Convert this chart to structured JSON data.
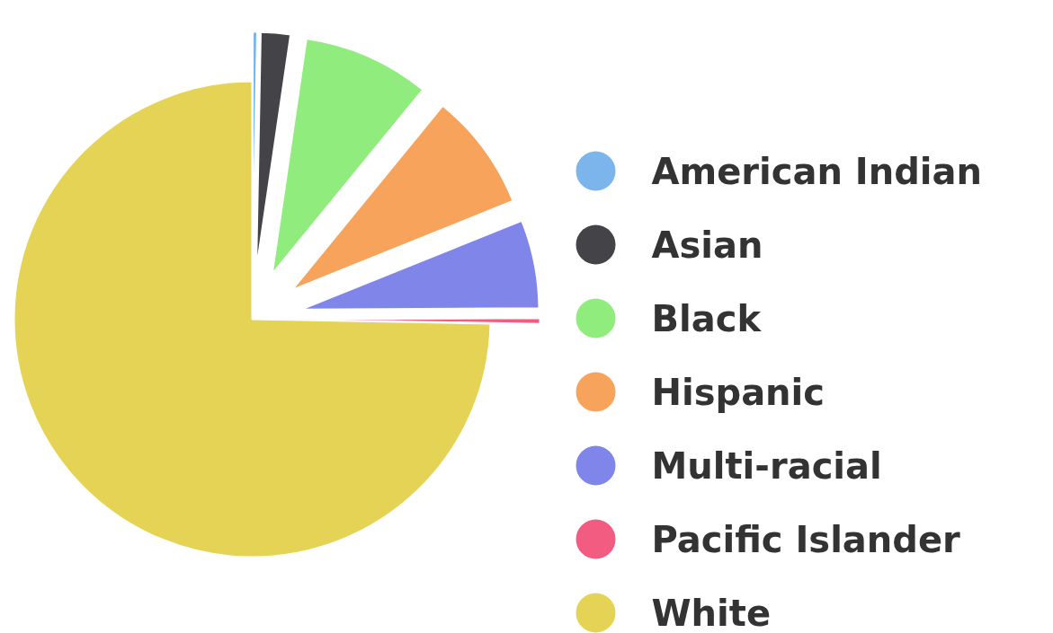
{
  "chart_data": {
    "type": "pie",
    "categories": [
      "American Indian",
      "Asian",
      "Black",
      "Hispanic",
      "Multi-racial",
      "Pacific Islander",
      "White"
    ],
    "values": [
      0.3,
      2,
      8.6,
      8,
      6,
      0.4,
      74.7
    ],
    "colors": [
      "#7cb5ec",
      "#434348",
      "#90ed7d",
      "#f7a35c",
      "#8085e9",
      "#f15c80",
      "#e4d354"
    ],
    "legend": "right"
  }
}
